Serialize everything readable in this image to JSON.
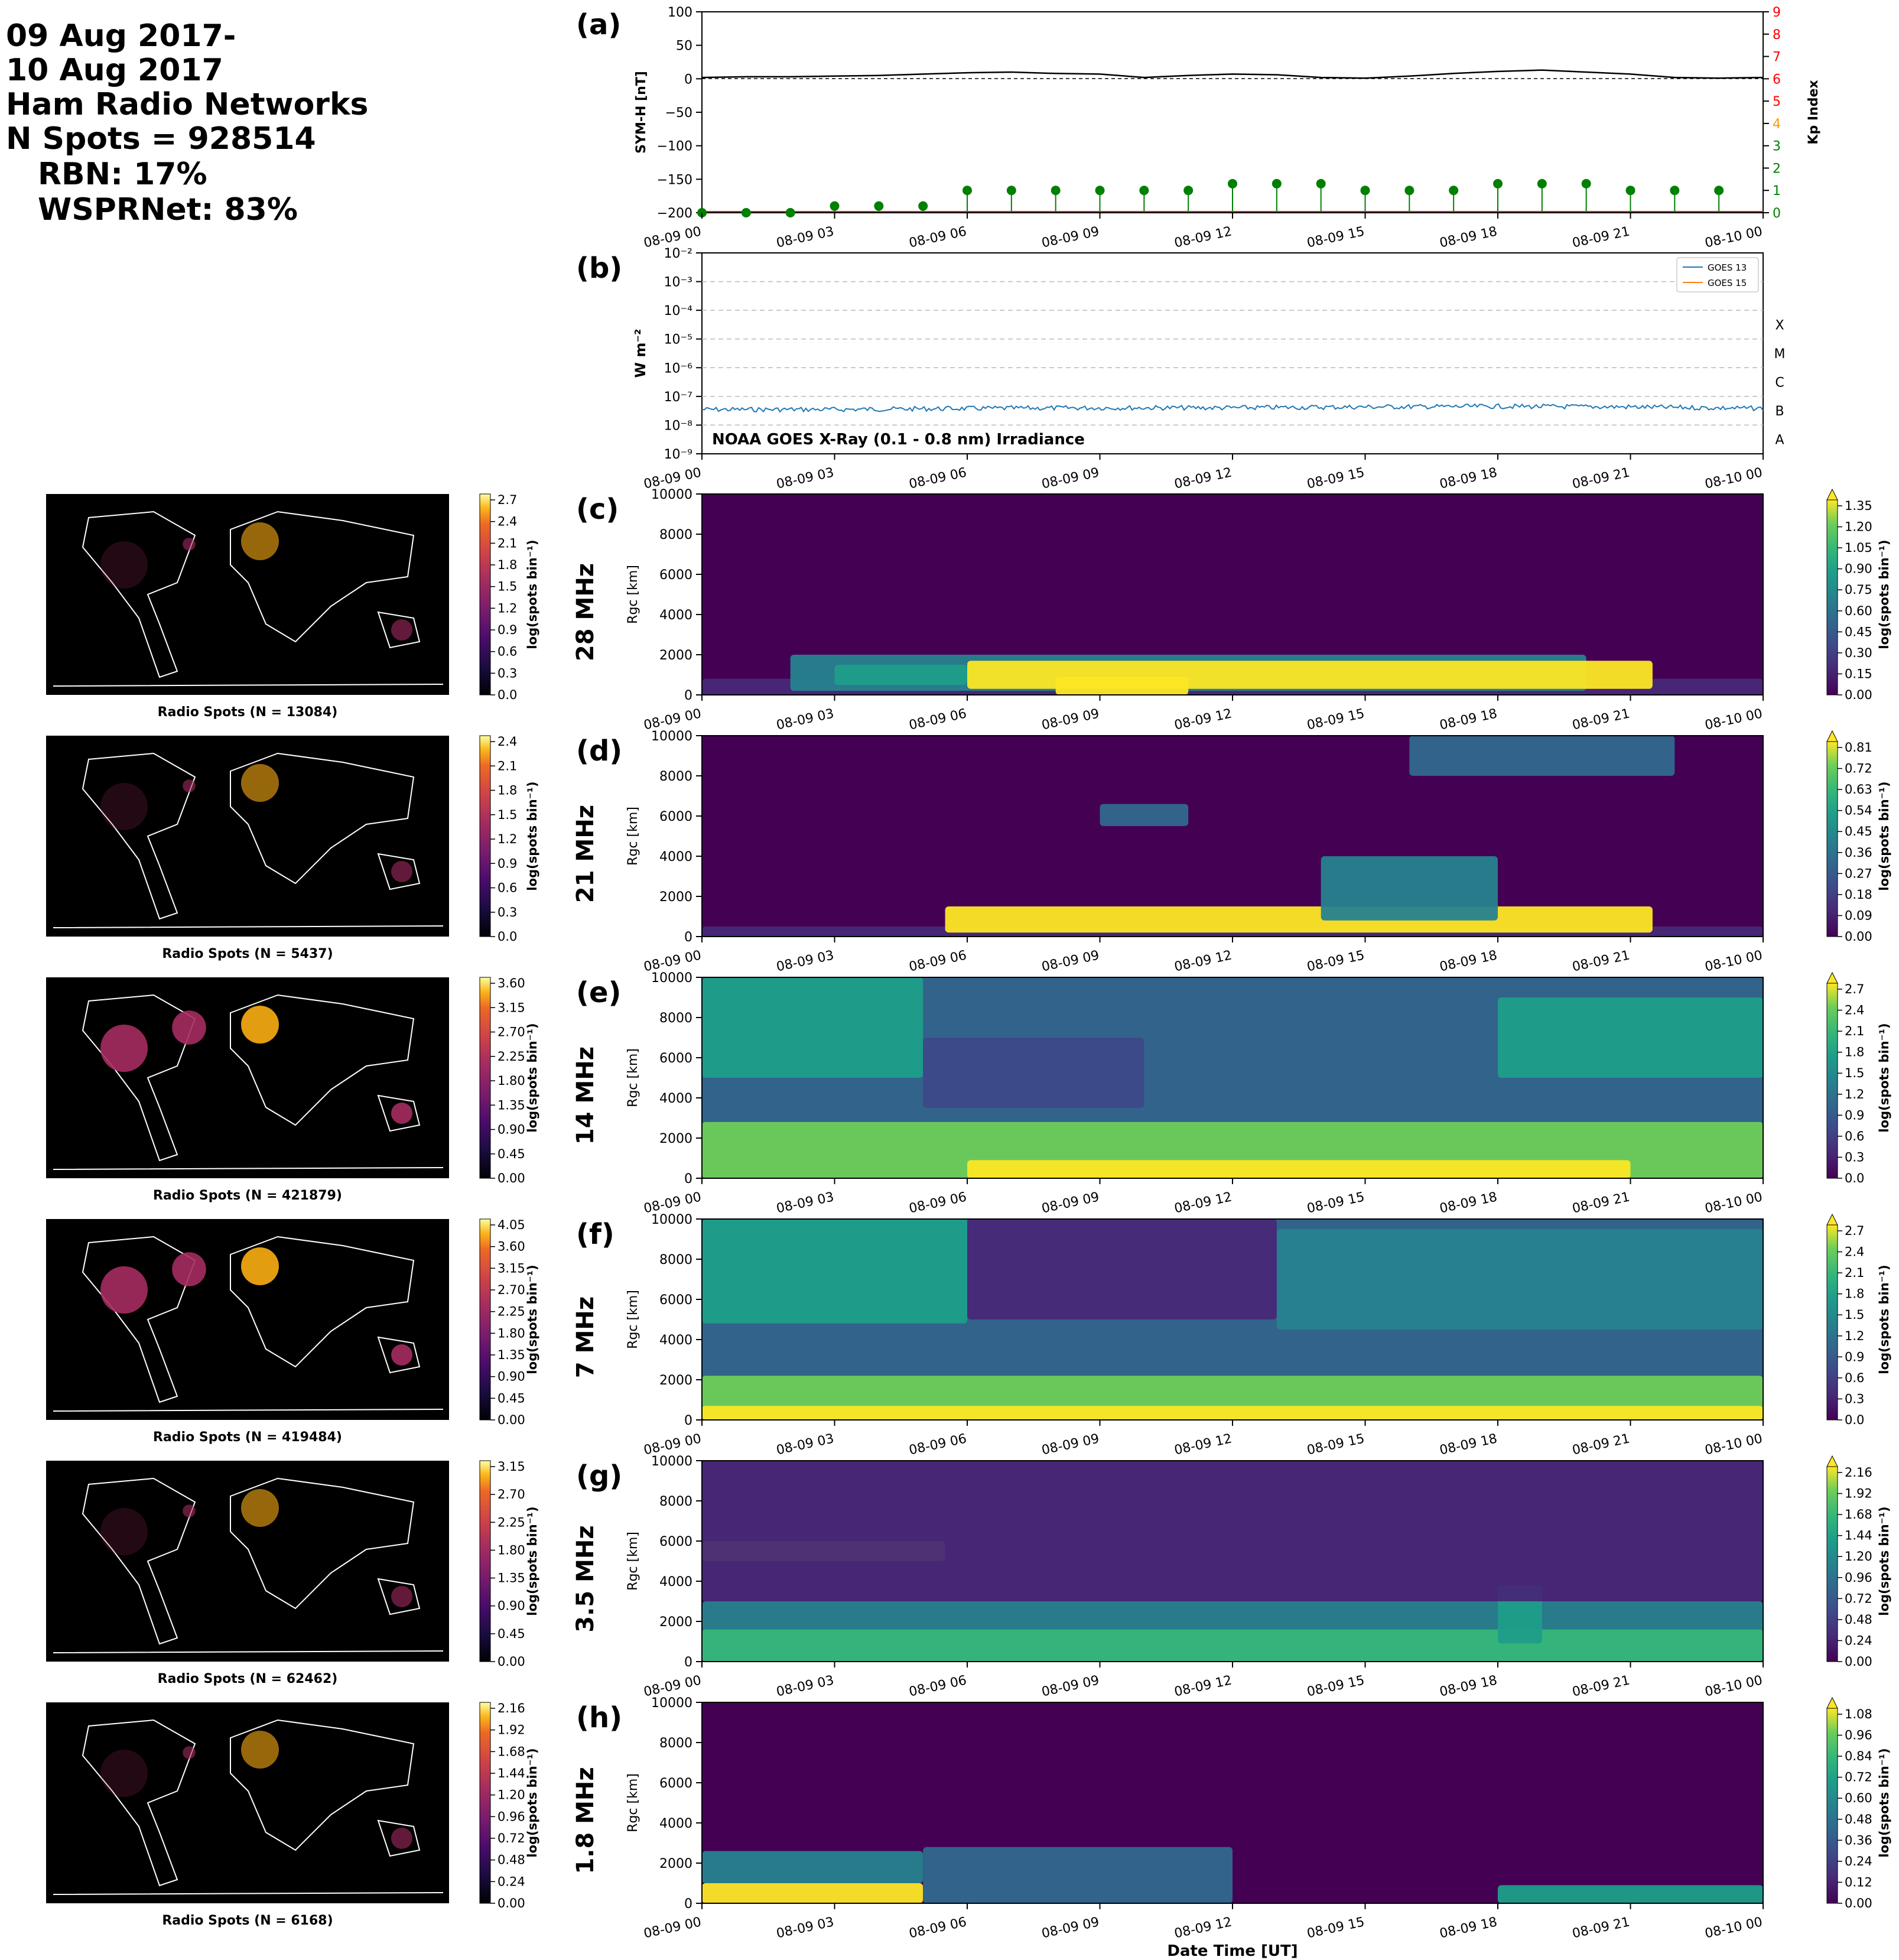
{
  "header": {
    "lines": [
      "09 Aug 2017-",
      "10 Aug 2017",
      "Ham Radio Networks",
      "N Spots = 928514",
      "RBN: 17%",
      "WSPRNet: 83%"
    ]
  },
  "time_ticks": [
    "08-09 00",
    "08-09 03",
    "08-09 06",
    "08-09 09",
    "08-09 12",
    "08-09 15",
    "08-09 18",
    "08-09 21",
    "08-10 00"
  ],
  "xlabel": "Date Time [UT]",
  "panel_a": {
    "letter": "(a)",
    "ylabel": "SYM-H [nT]",
    "y2label": "Kp Index",
    "ylim": [
      -200,
      100
    ],
    "yticks": [
      "100",
      "50",
      "0",
      "−50",
      "−100",
      "−150",
      "−200"
    ],
    "kp_ticks": [
      "0",
      "1",
      "2",
      "3",
      "4",
      "5",
      "6",
      "7",
      "8",
      "9"
    ],
    "kp_tick_colors": [
      "#008000",
      "#008000",
      "#008000",
      "#008000",
      "#ff9900",
      "#ff0000",
      "#ff0000",
      "#ff0000",
      "#ff0000",
      "#ff0000"
    ],
    "colors": {
      "symh": "#000000",
      "kp": "#008000"
    }
  },
  "panel_b": {
    "letter": "(b)",
    "ylabel": "W m⁻²",
    "yticks": [
      "10⁻²",
      "10⁻³",
      "10⁻⁴",
      "10⁻⁵",
      "10⁻⁶",
      "10⁻⁷",
      "10⁻⁸",
      "10⁻⁹"
    ],
    "classes": [
      "X",
      "M",
      "C",
      "B",
      "A"
    ],
    "annotation": "NOAA GOES X-Ray (0.1 - 0.8 nm) Irradiance",
    "legend": [
      "GOES 13",
      "GOES 15"
    ],
    "colors": {
      "goes13": "#1f77b4",
      "goes15": "#ff7f0e"
    }
  },
  "rows": [
    {
      "letter": "(c)",
      "band": "28 MHz",
      "map_caption": "Radio Spots (N = 13084)",
      "map_ticks": [
        "2.7",
        "2.4",
        "2.1",
        "1.8",
        "1.5",
        "1.2",
        "0.9",
        "0.6",
        "0.3",
        "0.0"
      ],
      "cb_ticks": [
        "1.35",
        "1.20",
        "1.05",
        "0.90",
        "0.75",
        "0.60",
        "0.45",
        "0.30",
        "0.15",
        "0.00"
      ],
      "extend": true
    },
    {
      "letter": "(d)",
      "band": "21 MHz",
      "map_caption": "Radio Spots (N = 5437)",
      "map_ticks": [
        "2.4",
        "2.1",
        "1.8",
        "1.5",
        "1.2",
        "0.9",
        "0.6",
        "0.3",
        "0.0"
      ],
      "cb_ticks": [
        "0.81",
        "0.72",
        "0.63",
        "0.54",
        "0.45",
        "0.36",
        "0.27",
        "0.18",
        "0.09",
        "0.00"
      ],
      "extend": true
    },
    {
      "letter": "(e)",
      "band": "14 MHz",
      "map_caption": "Radio Spots (N = 421879)",
      "map_ticks": [
        "3.60",
        "3.15",
        "2.70",
        "2.25",
        "1.80",
        "1.35",
        "0.90",
        "0.45",
        "0.00"
      ],
      "cb_ticks": [
        "2.7",
        "2.4",
        "2.1",
        "1.8",
        "1.5",
        "1.2",
        "0.9",
        "0.6",
        "0.3",
        "0.0"
      ],
      "extend": true
    },
    {
      "letter": "(f)",
      "band": "7 MHz",
      "map_caption": "Radio Spots (N = 419484)",
      "map_ticks": [
        "4.05",
        "3.60",
        "3.15",
        "2.70",
        "2.25",
        "1.80",
        "1.35",
        "0.90",
        "0.45",
        "0.00"
      ],
      "cb_ticks": [
        "2.7",
        "2.4",
        "2.1",
        "1.8",
        "1.5",
        "1.2",
        "0.9",
        "0.6",
        "0.3",
        "0.0"
      ],
      "extend": true
    },
    {
      "letter": "(g)",
      "band": "3.5 MHz",
      "map_caption": "Radio Spots (N = 62462)",
      "map_ticks": [
        "3.15",
        "2.70",
        "2.25",
        "1.80",
        "1.35",
        "0.90",
        "0.45",
        "0.00"
      ],
      "cb_ticks": [
        "2.16",
        "1.92",
        "1.68",
        "1.44",
        "1.20",
        "0.96",
        "0.72",
        "0.48",
        "0.24",
        "0.00"
      ],
      "extend": true
    },
    {
      "letter": "(h)",
      "band": "1.8 MHz",
      "map_caption": "Radio Spots (N = 6168)",
      "map_ticks": [
        "2.16",
        "1.92",
        "1.68",
        "1.44",
        "1.20",
        "0.96",
        "0.72",
        "0.48",
        "0.24",
        "0.00"
      ],
      "cb_ticks": [
        "1.08",
        "0.96",
        "0.84",
        "0.72",
        "0.60",
        "0.48",
        "0.36",
        "0.24",
        "0.12",
        "0.00"
      ],
      "extend": true
    }
  ],
  "rgc_ylabel": "Rgc [km]",
  "rgc_yticks": [
    "10000",
    "8000",
    "6000",
    "4000",
    "2000",
    "0"
  ],
  "cb_label": "log(spots bin⁻¹)",
  "chart_data": [
    {
      "type": "line",
      "panel": "a",
      "series": [
        {
          "name": "SYM-H",
          "x": [
            "08-09 00",
            "08-09 01",
            "08-09 02",
            "08-09 03",
            "08-09 04",
            "08-09 05",
            "08-09 06",
            "08-09 07",
            "08-09 08",
            "08-09 09",
            "08-09 10",
            "08-09 11",
            "08-09 12",
            "08-09 13",
            "08-09 14",
            "08-09 15",
            "08-09 16",
            "08-09 17",
            "08-09 18",
            "08-09 19",
            "08-09 20",
            "08-09 21",
            "08-09 22",
            "08-09 23",
            "08-10 00"
          ],
          "values": [
            2,
            3,
            3,
            4,
            5,
            7,
            9,
            10,
            8,
            7,
            2,
            5,
            7,
            6,
            2,
            1,
            4,
            8,
            11,
            13,
            10,
            7,
            2,
            1,
            2
          ]
        },
        {
          "name": "Kp",
          "x": [
            "08-09 00",
            "08-09 01",
            "08-09 02",
            "08-09 03",
            "08-09 04",
            "08-09 05",
            "08-09 06",
            "08-09 07",
            "08-09 08",
            "08-09 09",
            "08-09 10",
            "08-09 11",
            "08-09 12",
            "08-09 13",
            "08-09 14",
            "08-09 15",
            "08-09 16",
            "08-09 17",
            "08-09 18",
            "08-09 19",
            "08-09 20",
            "08-09 21",
            "08-09 22",
            "08-09 23"
          ],
          "values": [
            0,
            0,
            0,
            0.3,
            0.3,
            0.3,
            1,
            1,
            1,
            1,
            1,
            1,
            1.3,
            1.3,
            1.3,
            1,
            1,
            1,
            1.3,
            1.3,
            1.3,
            1,
            1,
            1
          ]
        }
      ],
      "ylim": [
        -200,
        100
      ],
      "y2lim": [
        0,
        9
      ]
    },
    {
      "type": "line",
      "panel": "b",
      "series": [
        {
          "name": "GOES 13",
          "x": [
            "08-09 00",
            "08-09 03",
            "08-09 06",
            "08-09 09",
            "08-09 12",
            "08-09 15",
            "08-09 18",
            "08-09 21",
            "08-10 00"
          ],
          "values": [
            3.5e-08,
            3.5e-08,
            3.8e-08,
            4e-08,
            4e-08,
            4.3e-08,
            4.5e-08,
            4.3e-08,
            3.8e-08
          ]
        }
      ],
      "ylim": [
        1e-09,
        0.01
      ],
      "yscale": "log"
    },
    {
      "type": "heatmap",
      "panel": "c-h",
      "band_summary": [
        {
          "band": "28 MHz",
          "zmax": 1.35,
          "note": "bright band below 2000 km from 08-09 06 to 08-09 21"
        },
        {
          "band": "21 MHz",
          "zmax": 0.81,
          "note": "bright band below 1500 km from 08-09 06 to 08-09 21"
        },
        {
          "band": "14 MHz",
          "zmax": 2.7,
          "note": "strong below 2500 km all day, broad emission to 10000 km"
        },
        {
          "band": "7 MHz",
          "zmax": 2.7,
          "note": "strong below 2000 km, enhanced 4000-10000 km early and late"
        },
        {
          "band": "3.5 MHz",
          "zmax": 2.16,
          "note": "strong below 2000 km, striped 5000-6000 km 08-09 00 to 08-09 06"
        },
        {
          "band": "1.8 MHz",
          "zmax": 1.08,
          "note": "strong below 1000 km 08-09 00 to 08-09 05"
        }
      ]
    }
  ]
}
